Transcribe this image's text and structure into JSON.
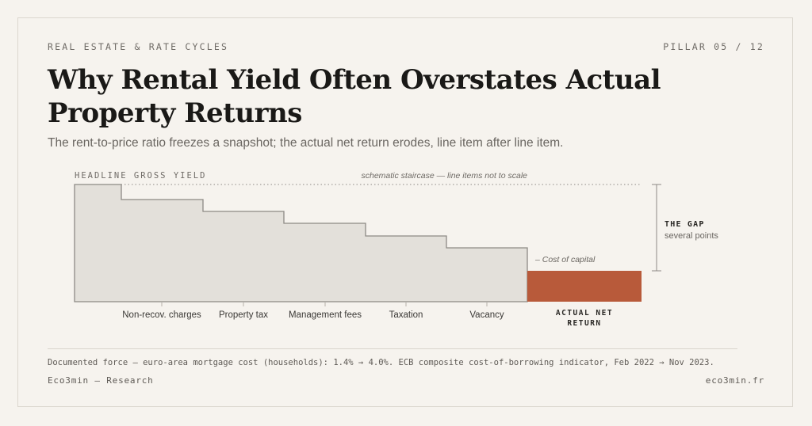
{
  "header": {
    "kicker": "REAL ESTATE & RATE CYCLES",
    "pillar": "PILLAR 05 / 12",
    "title": "Why Rental Yield Often Overstates Actual Property Returns",
    "subtitle": "The rent-to-price ratio freezes a snapshot; the actual net return erodes, line item after line item."
  },
  "diagram": {
    "headline_label": "HEADLINE GROSS YIELD",
    "scale_note": "schematic staircase — line items not to scale",
    "steps": [
      "Non-recov. charges",
      "Property tax",
      "Management fees",
      "Taxation",
      "Vacancy"
    ],
    "cost_of_capital_label": "– Cost of capital",
    "actual_label_line1": "ACTUAL NET",
    "actual_label_line2": "RETURN",
    "gap_label": "THE GAP",
    "gap_sublabel": "several points",
    "colors": {
      "staircase_fill": "#e3e0da",
      "staircase_stroke": "#8d8a85",
      "actual_fill": "#b85a3a"
    }
  },
  "footer": {
    "footnote": "Documented force — euro-area mortgage cost (households): 1.4% → 4.0%. ECB composite cost-of-borrowing indicator, Feb 2022 → Nov 2023.",
    "brand": "Eco3min — Research",
    "site": "eco3min.fr"
  }
}
